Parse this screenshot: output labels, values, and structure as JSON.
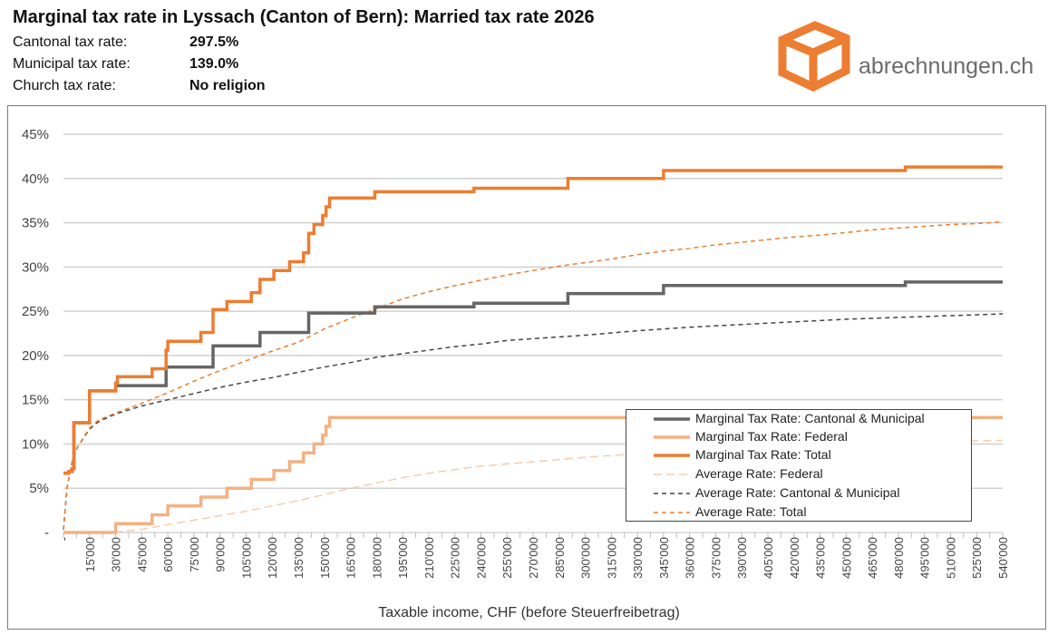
{
  "header": {
    "title": "Marginal tax rate in Lyssach (Canton of Bern): Married tax rate 2026",
    "rows": [
      {
        "label": "Cantonal tax rate:",
        "value": "297.5%"
      },
      {
        "label": "Municipal tax rate:",
        "value": "139.0%"
      },
      {
        "label": "Church tax rate:",
        "value": "No religion"
      }
    ]
  },
  "logo": {
    "text": "abrechnungen.ch",
    "color": "#e8742a"
  },
  "chart_data": {
    "type": "line",
    "xlabel": "Taxable income, CHF (before Steuerfreibetrag)",
    "ylabel": "",
    "xlim": [
      0,
      540000
    ],
    "ylim": [
      0,
      45
    ],
    "grid": true,
    "legend_position": "bottom-right",
    "x_ticks": [
      "-",
      "15'000",
      "30'000",
      "45'000",
      "60'000",
      "75'000",
      "90'000",
      "105'000",
      "120'000",
      "135'000",
      "150'000",
      "165'000",
      "180'000",
      "195'000",
      "210'000",
      "225'000",
      "240'000",
      "255'000",
      "270'000",
      "285'000",
      "300'000",
      "315'000",
      "330'000",
      "345'000",
      "360'000",
      "375'000",
      "390'000",
      "405'000",
      "420'000",
      "435'000",
      "450'000",
      "465'000",
      "480'000",
      "495'000",
      "510'000",
      "525'000",
      "540'000"
    ],
    "y_ticks": [
      "-",
      "5%",
      "10%",
      "15%",
      "20%",
      "25%",
      "30%",
      "35%",
      "40%",
      "45%"
    ],
    "series": [
      {
        "name": "Marginal Tax Rate: Cantonal & Municipal",
        "color": "#666666",
        "style": "solid",
        "step": true,
        "points": [
          [
            0,
            6.7
          ],
          [
            3000,
            6.9
          ],
          [
            5000,
            7.2
          ],
          [
            6000,
            12.4
          ],
          [
            15000,
            16.0
          ],
          [
            30000,
            16.6
          ],
          [
            50000,
            16.6
          ],
          [
            59000,
            18.7
          ],
          [
            85000,
            18.7
          ],
          [
            86000,
            21.1
          ],
          [
            112000,
            21.1
          ],
          [
            113000,
            22.6
          ],
          [
            140000,
            22.6
          ],
          [
            141000,
            24.8
          ],
          [
            178000,
            24.8
          ],
          [
            179000,
            25.5
          ],
          [
            235000,
            25.5
          ],
          [
            236000,
            25.9
          ],
          [
            289000,
            25.9
          ],
          [
            290000,
            27.0
          ],
          [
            344000,
            27.0
          ],
          [
            345000,
            27.9
          ],
          [
            483000,
            27.9
          ],
          [
            484000,
            28.3
          ],
          [
            540000,
            28.3
          ]
        ]
      },
      {
        "name": "Marginal Tax Rate: Federal",
        "color": "#f4b183",
        "style": "solid",
        "step": true,
        "points": [
          [
            0,
            0
          ],
          [
            29000,
            0
          ],
          [
            30000,
            1.0
          ],
          [
            50000,
            1.0
          ],
          [
            51000,
            2.0
          ],
          [
            58000,
            2.0
          ],
          [
            60000,
            3.0
          ],
          [
            78000,
            3.0
          ],
          [
            79000,
            4.0
          ],
          [
            93000,
            4.0
          ],
          [
            94000,
            5.0
          ],
          [
            107000,
            5.0
          ],
          [
            108000,
            6.0
          ],
          [
            120000,
            6.0
          ],
          [
            121000,
            7.0
          ],
          [
            129000,
            7.0
          ],
          [
            130000,
            8.0
          ],
          [
            137000,
            8.0
          ],
          [
            138000,
            9.0
          ],
          [
            143000,
            9.0
          ],
          [
            144000,
            10.0
          ],
          [
            148000,
            10.0
          ],
          [
            149000,
            11.0
          ],
          [
            150000,
            11.0
          ],
          [
            151000,
            12.0
          ],
          [
            152000,
            12.0
          ],
          [
            153000,
            13.0
          ],
          [
            540000,
            13.0
          ]
        ]
      },
      {
        "name": "Marginal Tax Rate: Total",
        "color": "#ed7d31",
        "style": "solid",
        "step": true,
        "points": [
          [
            0,
            6.7
          ],
          [
            3000,
            6.9
          ],
          [
            5000,
            7.2
          ],
          [
            6000,
            12.4
          ],
          [
            15000,
            16.0
          ],
          [
            29000,
            16.0
          ],
          [
            30000,
            16.9
          ],
          [
            31000,
            17.6
          ],
          [
            50000,
            17.6
          ],
          [
            51000,
            18.5
          ],
          [
            58000,
            18.5
          ],
          [
            59000,
            20.6
          ],
          [
            60000,
            21.6
          ],
          [
            78000,
            21.6
          ],
          [
            79000,
            22.6
          ],
          [
            85000,
            22.6
          ],
          [
            86000,
            25.2
          ],
          [
            93000,
            25.2
          ],
          [
            94000,
            26.1
          ],
          [
            107000,
            26.1
          ],
          [
            108000,
            27.1
          ],
          [
            112000,
            27.1
          ],
          [
            113000,
            28.6
          ],
          [
            120000,
            28.6
          ],
          [
            121000,
            29.6
          ],
          [
            129000,
            29.6
          ],
          [
            130000,
            30.6
          ],
          [
            137000,
            30.6
          ],
          [
            138000,
            31.6
          ],
          [
            140000,
            31.6
          ],
          [
            141000,
            33.8
          ],
          [
            143000,
            33.8
          ],
          [
            144000,
            34.8
          ],
          [
            148000,
            34.8
          ],
          [
            149000,
            35.8
          ],
          [
            150000,
            35.8
          ],
          [
            151000,
            36.8
          ],
          [
            152000,
            36.8
          ],
          [
            153000,
            37.8
          ],
          [
            178000,
            37.8
          ],
          [
            179000,
            38.5
          ],
          [
            235000,
            38.5
          ],
          [
            236000,
            38.9
          ],
          [
            289000,
            38.9
          ],
          [
            290000,
            40.0
          ],
          [
            344000,
            40.0
          ],
          [
            345000,
            40.9
          ],
          [
            483000,
            40.9
          ],
          [
            484000,
            41.3
          ],
          [
            540000,
            41.3
          ]
        ]
      },
      {
        "name": "Average Rate: Federal",
        "color": "#f8cbad",
        "style": "dashed",
        "step": false,
        "points": [
          [
            0,
            0
          ],
          [
            30000,
            0.05
          ],
          [
            45000,
            0.35
          ],
          [
            60000,
            0.9
          ],
          [
            75000,
            1.4
          ],
          [
            90000,
            1.9
          ],
          [
            105000,
            2.4
          ],
          [
            120000,
            3.0
          ],
          [
            135000,
            3.6
          ],
          [
            150000,
            4.3
          ],
          [
            165000,
            5.0
          ],
          [
            180000,
            5.6
          ],
          [
            195000,
            6.2
          ],
          [
            210000,
            6.7
          ],
          [
            225000,
            7.1
          ],
          [
            240000,
            7.5
          ],
          [
            270000,
            8.0
          ],
          [
            300000,
            8.5
          ],
          [
            330000,
            8.9
          ],
          [
            360000,
            9.2
          ],
          [
            390000,
            9.5
          ],
          [
            420000,
            9.7
          ],
          [
            450000,
            9.9
          ],
          [
            480000,
            10.1
          ],
          [
            510000,
            10.3
          ],
          [
            540000,
            10.4
          ]
        ]
      },
      {
        "name": "Average Rate: Cantonal & Municipal",
        "color": "#444444",
        "style": "dashed",
        "step": false,
        "points": [
          [
            0,
            0.3
          ],
          [
            2000,
            5.0
          ],
          [
            5000,
            8.0
          ],
          [
            8000,
            9.6
          ],
          [
            12000,
            10.8
          ],
          [
            15000,
            11.7
          ],
          [
            20000,
            12.5
          ],
          [
            30000,
            13.4
          ],
          [
            45000,
            14.3
          ],
          [
            60000,
            15.0
          ],
          [
            75000,
            15.7
          ],
          [
            90000,
            16.4
          ],
          [
            105000,
            17.0
          ],
          [
            120000,
            17.5
          ],
          [
            135000,
            18.1
          ],
          [
            150000,
            18.7
          ],
          [
            165000,
            19.2
          ],
          [
            180000,
            19.8
          ],
          [
            195000,
            20.2
          ],
          [
            210000,
            20.6
          ],
          [
            225000,
            21.0
          ],
          [
            240000,
            21.3
          ],
          [
            255000,
            21.7
          ],
          [
            270000,
            21.9
          ],
          [
            285000,
            22.1
          ],
          [
            300000,
            22.3
          ],
          [
            330000,
            22.8
          ],
          [
            360000,
            23.2
          ],
          [
            390000,
            23.5
          ],
          [
            420000,
            23.8
          ],
          [
            450000,
            24.1
          ],
          [
            480000,
            24.3
          ],
          [
            510000,
            24.5
          ],
          [
            540000,
            24.7
          ]
        ]
      },
      {
        "name": "Average Rate: Total",
        "color": "#ed7d31",
        "style": "dashed",
        "step": false,
        "points": [
          [
            0,
            0.3
          ],
          [
            2000,
            5.0
          ],
          [
            5000,
            8.0
          ],
          [
            8000,
            9.6
          ],
          [
            12000,
            10.9
          ],
          [
            15000,
            11.8
          ],
          [
            20000,
            12.7
          ],
          [
            30000,
            13.5
          ],
          [
            45000,
            14.6
          ],
          [
            60000,
            15.8
          ],
          [
            75000,
            17.1
          ],
          [
            90000,
            18.3
          ],
          [
            105000,
            19.4
          ],
          [
            120000,
            20.5
          ],
          [
            135000,
            21.5
          ],
          [
            150000,
            23.0
          ],
          [
            165000,
            24.2
          ],
          [
            180000,
            25.3
          ],
          [
            195000,
            26.4
          ],
          [
            210000,
            27.2
          ],
          [
            225000,
            27.9
          ],
          [
            240000,
            28.5
          ],
          [
            255000,
            29.1
          ],
          [
            270000,
            29.6
          ],
          [
            285000,
            30.1
          ],
          [
            300000,
            30.5
          ],
          [
            315000,
            30.9
          ],
          [
            330000,
            31.4
          ],
          [
            345000,
            31.8
          ],
          [
            360000,
            32.1
          ],
          [
            375000,
            32.5
          ],
          [
            390000,
            32.8
          ],
          [
            405000,
            33.1
          ],
          [
            420000,
            33.4
          ],
          [
            435000,
            33.6
          ],
          [
            450000,
            33.9
          ],
          [
            465000,
            34.2
          ],
          [
            480000,
            34.4
          ],
          [
            495000,
            34.6
          ],
          [
            510000,
            34.8
          ],
          [
            525000,
            34.9
          ],
          [
            540000,
            35.1
          ]
        ]
      }
    ]
  }
}
